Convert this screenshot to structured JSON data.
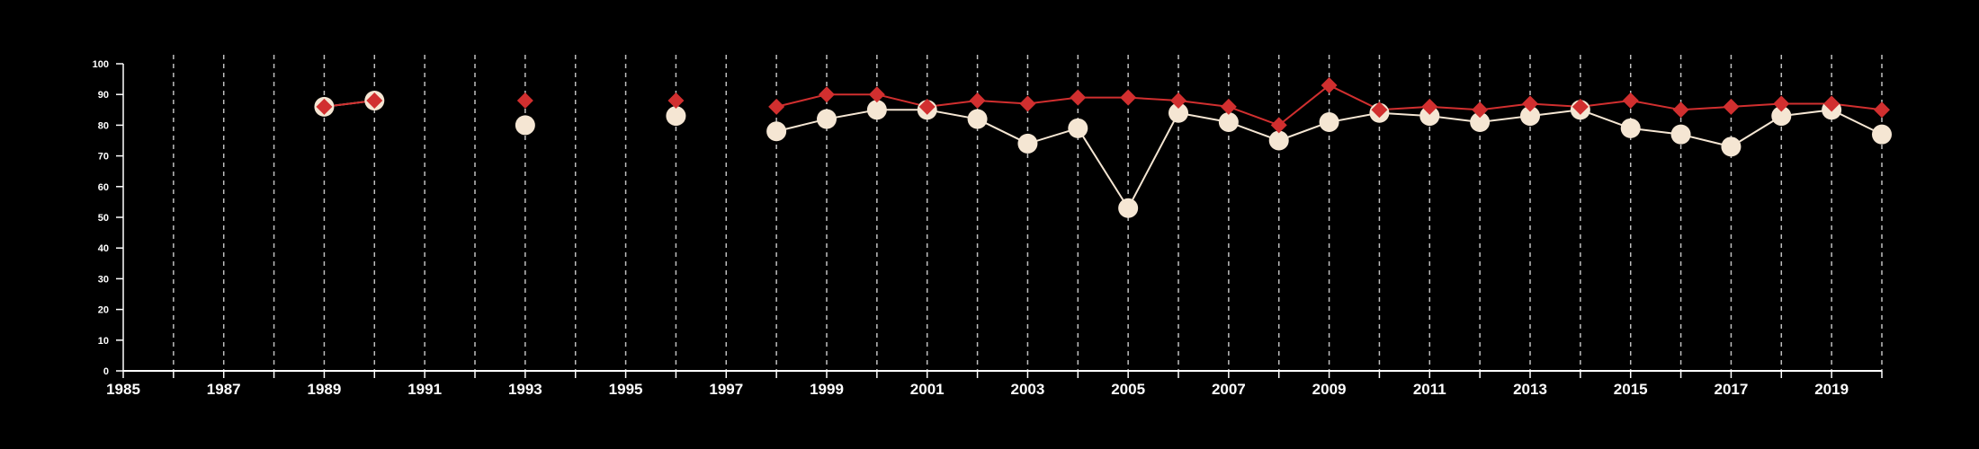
{
  "chart_data": {
    "type": "line",
    "title": "",
    "xlabel": "",
    "ylabel": "",
    "xlim": [
      1985,
      2020
    ],
    "ylim": [
      0,
      100
    ],
    "y_ticks": [
      0,
      10,
      20,
      30,
      40,
      50,
      60,
      70,
      80,
      90,
      100
    ],
    "x_tick_labels": [
      1985,
      1987,
      1989,
      1991,
      1993,
      1995,
      1997,
      1999,
      2001,
      2003,
      2005,
      2007,
      2009,
      2011,
      2013,
      2015,
      2017,
      2019
    ],
    "grid": "vertical dashed lines at every year",
    "series": [
      {
        "color": "#f5e6d3",
        "marker": "circle",
        "x": [
          1989,
          1990,
          1993,
          1996,
          1998,
          1999,
          2000,
          2001,
          2002,
          2003,
          2004,
          2005,
          2006,
          2007,
          2008,
          2009,
          2010,
          2011,
          2012,
          2013,
          2014,
          2015,
          2016,
          2017,
          2018,
          2019,
          2020
        ],
        "values": [
          86,
          88,
          80,
          83,
          78,
          82,
          85,
          85,
          82,
          74,
          79,
          53,
          84,
          81,
          75,
          81,
          84,
          83,
          81,
          83,
          85,
          79,
          77,
          73,
          83,
          85,
          77
        ]
      },
      {
        "color": "#d12f2f",
        "marker": "diamond",
        "x": [
          1989,
          1990,
          1993,
          1996,
          1998,
          1999,
          2000,
          2001,
          2002,
          2003,
          2004,
          2005,
          2006,
          2007,
          2008,
          2009,
          2010,
          2011,
          2012,
          2013,
          2014,
          2015,
          2016,
          2017,
          2018,
          2019,
          2020
        ],
        "values": [
          86,
          88,
          88,
          88,
          86,
          90,
          90,
          86,
          88,
          87,
          89,
          89,
          88,
          86,
          80,
          93,
          85,
          86,
          85,
          87,
          86,
          88,
          85,
          86,
          87,
          87,
          85
        ]
      }
    ]
  },
  "style": {
    "background": "#000000",
    "axis_color": "#ffffff",
    "grid_color": "#bfbfbf"
  }
}
